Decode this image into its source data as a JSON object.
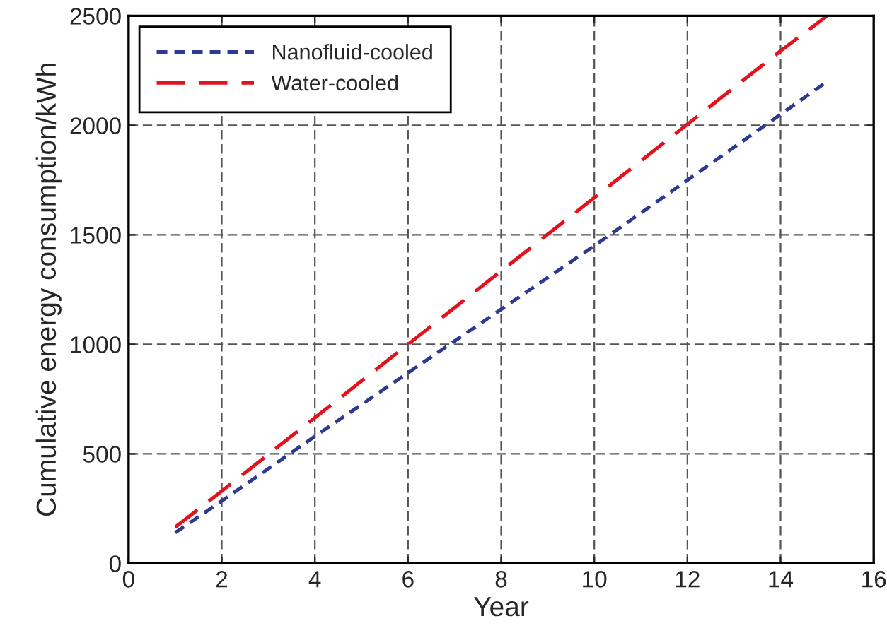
{
  "chart_data": {
    "type": "line",
    "xlabel": "Year",
    "ylabel": "Cumulative energy consumption/kWh",
    "x": [
      1,
      2,
      4,
      6,
      8,
      10,
      12,
      14,
      15
    ],
    "series": [
      {
        "name": "Nanofluid-cooled",
        "color": "#2e3a92",
        "line_style": "dotted",
        "values": [
          140,
          285,
          580,
          870,
          1160,
          1450,
          1750,
          2050,
          2200
        ]
      },
      {
        "name": "Water-cooled",
        "color": "#e3121c",
        "line_style": "dashed",
        "values": [
          165,
          330,
          665,
          1000,
          1335,
          1670,
          2005,
          2340,
          2500
        ]
      }
    ],
    "xlim": [
      0,
      16
    ],
    "xticks": [
      0,
      2,
      4,
      6,
      8,
      10,
      12,
      14,
      16
    ],
    "ylim": [
      0,
      2500
    ],
    "yticks": [
      0,
      500,
      1000,
      1500,
      2000,
      2500
    ],
    "grid": true,
    "legend": "top left"
  }
}
